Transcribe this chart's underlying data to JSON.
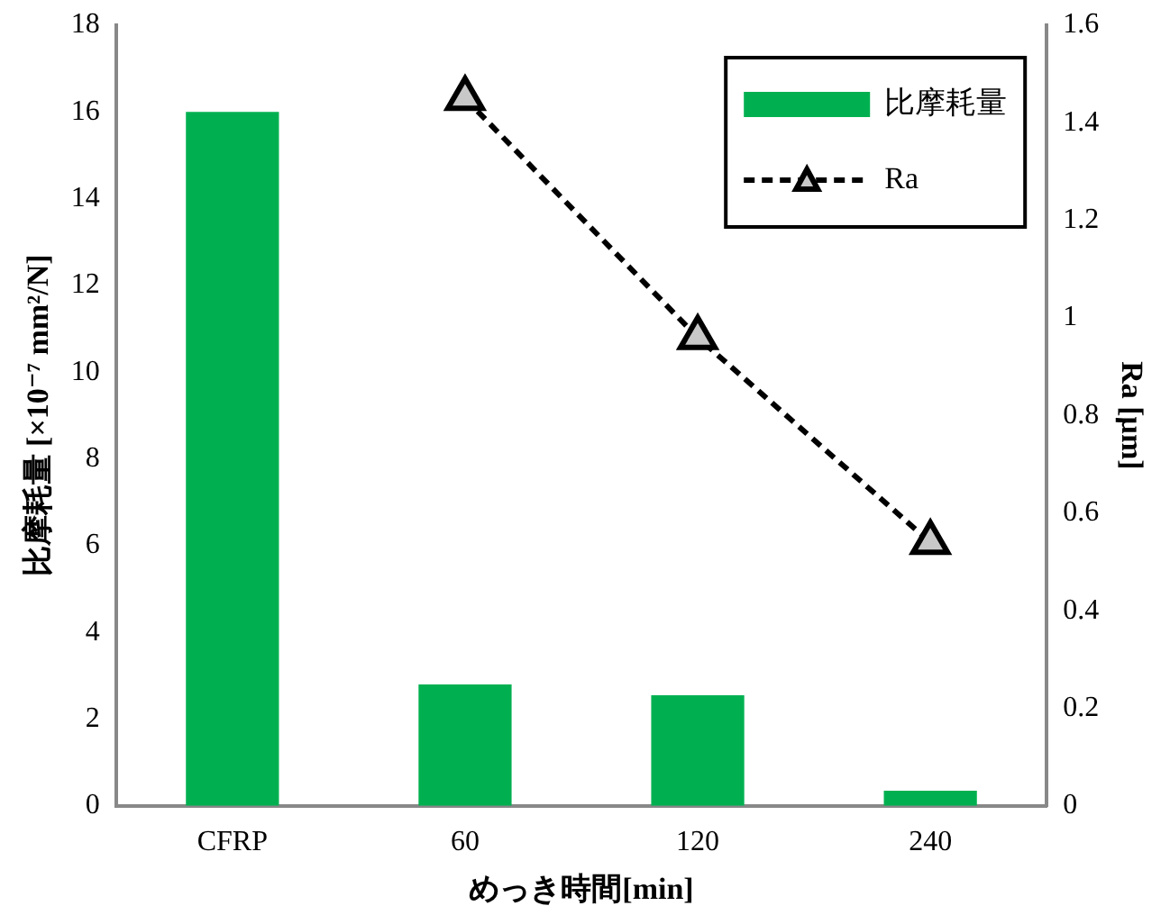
{
  "chart_data": {
    "type": "bar",
    "xlabel": "めっき時間[min]",
    "ylabel": "比摩耗量 [×10⁻⁷ mm²/N]",
    "y2label": "Ra [μm]",
    "categories": [
      "CFRP",
      "60",
      "120",
      "240"
    ],
    "series": [
      {
        "name": "比摩耗量",
        "color": "#00b050",
        "values": [
          16,
          2.8,
          2.55,
          0.35
        ]
      },
      {
        "name": "Ra",
        "type": "line",
        "axis": "y2",
        "color": "#000000",
        "marker": "triangle",
        "line_style": "dashed",
        "values": [
          null,
          1.45,
          0.96,
          0.54
        ]
      }
    ],
    "ylim": [
      0,
      18
    ],
    "yticks": [
      0,
      2,
      4,
      6,
      8,
      10,
      12,
      14,
      16,
      18
    ],
    "y2lim": [
      0,
      1.6
    ],
    "y2ticks": [
      0,
      0.2,
      0.4,
      0.6,
      0.8,
      1,
      1.2,
      1.4,
      1.6
    ],
    "grid": false,
    "legend": "top right"
  }
}
